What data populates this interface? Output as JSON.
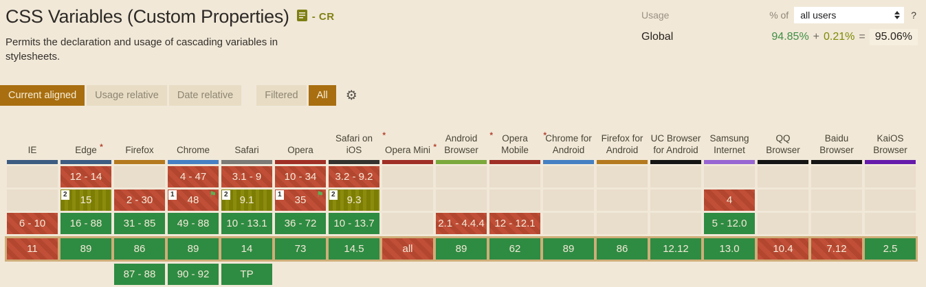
{
  "page": {
    "title": "CSS Variables (Custom Properties)",
    "spec_status_label": "- CR",
    "description": "Permits the declaration and usage of cascading variables in stylesheets."
  },
  "usage": {
    "label": "Usage",
    "percent_of_label": "% of",
    "audience_selected": "all users",
    "help_label": "?",
    "global_label": "Global",
    "supported_pct": "94.85%",
    "plus_sign": "+",
    "partial_pct": "0.21%",
    "equals_sign": "=",
    "total_pct": "95.06%"
  },
  "controls": {
    "view_modes": [
      {
        "label": "Current aligned",
        "active": true
      },
      {
        "label": "Usage relative",
        "active": false
      },
      {
        "label": "Date relative",
        "active": false
      }
    ],
    "filters": [
      {
        "label": "Filtered",
        "active": false
      },
      {
        "label": "All",
        "active": true
      }
    ],
    "settings_icon": "gear-icon"
  },
  "colors": {
    "page_background": "#f1e8d8",
    "accent_brown": "#a86e10",
    "support_yes_green": "#2e8b42",
    "support_no_red": "#c14f38",
    "support_partial_olive": "#7c7d03",
    "current_row_highlight": "#cfae79",
    "usage_supported_green": "#3f8e44",
    "usage_partial_olive": "#7c8a02",
    "empty_cell": "#e9ddcb"
  },
  "table": {
    "browsers": [
      {
        "name": "IE",
        "color": "#3c5c81",
        "asterisk": false
      },
      {
        "name": "Edge",
        "color": "#3c5c81",
        "asterisk": true
      },
      {
        "name": "Firefox",
        "color": "#b4791e",
        "asterisk": false
      },
      {
        "name": "Chrome",
        "color": "#4580c3",
        "asterisk": false
      },
      {
        "name": "Safari",
        "color": "#7b7a76",
        "asterisk": false
      },
      {
        "name": "Opera",
        "color": "#9f2f26",
        "asterisk": false
      },
      {
        "name": "Safari on iOS",
        "color": "#33322e",
        "asterisk": true
      },
      {
        "name": "Opera Mini",
        "color": "#9f2f26",
        "asterisk": true
      },
      {
        "name": "Android Browser",
        "color": "#7ba83c",
        "asterisk": true
      },
      {
        "name": "Opera Mobile",
        "color": "#9f2f26",
        "asterisk": true
      },
      {
        "name": "Chrome for Android",
        "color": "#4580c3",
        "asterisk": false
      },
      {
        "name": "Firefox for Android",
        "color": "#b4791e",
        "asterisk": false
      },
      {
        "name": "UC Browser for Android",
        "color": "#141414",
        "asterisk": false
      },
      {
        "name": "Samsung Internet",
        "color": "#9766d2",
        "asterisk": false
      },
      {
        "name": "QQ Browser",
        "color": "#141414",
        "asterisk": false
      },
      {
        "name": "Baidu Browser",
        "color": "#141414",
        "asterisk": false
      },
      {
        "name": "KaiOS Browser",
        "color": "#661bab",
        "asterisk": false
      }
    ],
    "rows": [
      {
        "name": "era-row-oldest",
        "current": false,
        "future": false,
        "cells": [
          null,
          {
            "v": "12 - 14",
            "s": "n"
          },
          null,
          {
            "v": "4 - 47",
            "s": "n"
          },
          {
            "v": "3.1 - 9",
            "s": "n"
          },
          {
            "v": "10 - 34",
            "s": "n"
          },
          {
            "v": "3.2 - 9.2",
            "s": "n"
          },
          null,
          null,
          null,
          null,
          null,
          null,
          null,
          null,
          null,
          null
        ]
      },
      {
        "name": "era-row-older",
        "current": false,
        "future": false,
        "cells": [
          null,
          {
            "v": "15",
            "s": "a",
            "badge": "2"
          },
          {
            "v": "2 - 30",
            "s": "n"
          },
          {
            "v": "48",
            "s": "n",
            "badge": "1",
            "flag": true
          },
          {
            "v": "9.1",
            "s": "a",
            "badge": "2"
          },
          {
            "v": "35",
            "s": "n",
            "badge": "1",
            "flag": true
          },
          {
            "v": "9.3",
            "s": "a",
            "badge": "2"
          },
          null,
          null,
          null,
          null,
          null,
          null,
          {
            "v": "4",
            "s": "n"
          },
          null,
          null,
          null
        ]
      },
      {
        "name": "era-row-past",
        "current": false,
        "future": false,
        "cells": [
          {
            "v": "6 - 10",
            "s": "n"
          },
          {
            "v": "16 - 88",
            "s": "y"
          },
          {
            "v": "31 - 85",
            "s": "y"
          },
          {
            "v": "49 - 88",
            "s": "y"
          },
          {
            "v": "10 - 13.1",
            "s": "y"
          },
          {
            "v": "36 - 72",
            "s": "y"
          },
          {
            "v": "10 - 13.7",
            "s": "y"
          },
          null,
          {
            "v": "2.1 - 4.4.4",
            "s": "n"
          },
          {
            "v": "12 - 12.1",
            "s": "n"
          },
          null,
          null,
          null,
          {
            "v": "5 - 12.0",
            "s": "y"
          },
          null,
          null,
          null
        ]
      },
      {
        "name": "current-version-row",
        "current": true,
        "future": false,
        "cells": [
          {
            "v": "11",
            "s": "n"
          },
          {
            "v": "89",
            "s": "y"
          },
          {
            "v": "86",
            "s": "y"
          },
          {
            "v": "89",
            "s": "y"
          },
          {
            "v": "14",
            "s": "y"
          },
          {
            "v": "73",
            "s": "y"
          },
          {
            "v": "14.5",
            "s": "y"
          },
          {
            "v": "all",
            "s": "n"
          },
          {
            "v": "89",
            "s": "y"
          },
          {
            "v": "62",
            "s": "y"
          },
          {
            "v": "89",
            "s": "y"
          },
          {
            "v": "86",
            "s": "y"
          },
          {
            "v": "12.12",
            "s": "y"
          },
          {
            "v": "13.0",
            "s": "y"
          },
          {
            "v": "10.4",
            "s": "n"
          },
          {
            "v": "7.12",
            "s": "n"
          },
          {
            "v": "2.5",
            "s": "y"
          }
        ]
      },
      {
        "name": "future-version-row",
        "current": false,
        "future": true,
        "cells": [
          null,
          null,
          {
            "v": "87 - 88",
            "s": "y"
          },
          {
            "v": "90 - 92",
            "s": "y"
          },
          {
            "v": "TP",
            "s": "y"
          },
          null,
          null,
          null,
          null,
          null,
          null,
          null,
          null,
          null,
          null,
          null,
          null
        ]
      }
    ]
  }
}
